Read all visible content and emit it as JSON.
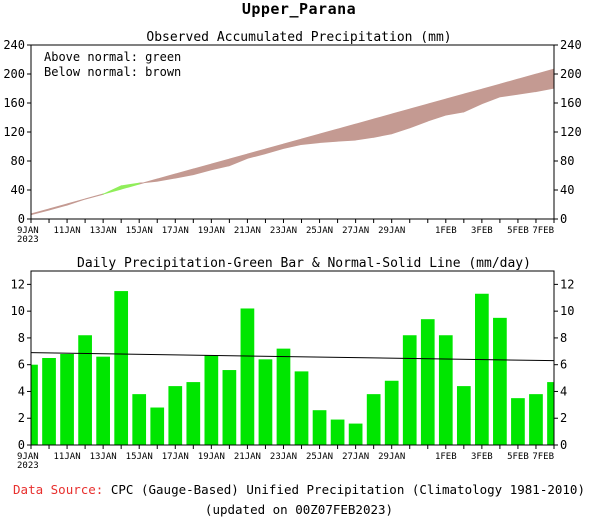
{
  "title": "Upper_Parana",
  "footer": {
    "source_label": "Data Source:",
    "source_text": "CPC (Gauge-Based) Unified Precipitation (Climatology 1981-2010)",
    "updated": "(updated on 00Z07FEB2023)"
  },
  "colors": {
    "above_normal": "#90ee5a",
    "below_normal": "#c49a92",
    "daily_bar": "#00e600",
    "normal_line": "#000000",
    "source_label": "#e8302e"
  },
  "chart_data": [
    {
      "type": "area",
      "title": "Observed Accumulated Precipitation (mm)",
      "legend": [
        "Above normal: green",
        "Below normal: brown"
      ],
      "legend_position": "top-left",
      "ylim": [
        0,
        240
      ],
      "yticks": [
        0,
        40,
        80,
        120,
        160,
        200,
        240
      ],
      "xtick_labels": [
        "9JAN\n2023",
        "11JAN",
        "13JAN",
        "15JAN",
        "17JAN",
        "19JAN",
        "21JAN",
        "23JAN",
        "25JAN",
        "27JAN",
        "29JAN",
        "1FEB",
        "3FEB",
        "5FEB",
        "7FEB"
      ],
      "xtick_days": [
        0,
        2,
        4,
        6,
        8,
        10,
        12,
        14,
        16,
        18,
        20,
        23,
        25,
        27,
        29
      ],
      "x_days": [
        0,
        1,
        2,
        3,
        4,
        5,
        6,
        7,
        8,
        9,
        10,
        11,
        12,
        13,
        14,
        15,
        16,
        17,
        18,
        19,
        20,
        21,
        22,
        23,
        24,
        25,
        26,
        27,
        28,
        29
      ],
      "observed": [
        6,
        12.5,
        19.3,
        27.5,
        34.1,
        45.6,
        49.4,
        52.2,
        56.6,
        61.3,
        68,
        73.6,
        83.8,
        90.2,
        97.4,
        102.9,
        105.5,
        107.4,
        109,
        112.8,
        117.6,
        125.8,
        135.2,
        143.4,
        147.8,
        159.1,
        168.6,
        172.1,
        175.9,
        180.6
      ],
      "normal": [
        6.9,
        13.8,
        20.7,
        27.6,
        34.4,
        41.3,
        48.2,
        55.1,
        62,
        68.9,
        75.7,
        82.6,
        89.5,
        96.4,
        103.3,
        110.2,
        117.1,
        123.9,
        130.8,
        137.7,
        144.6,
        151.5,
        158.4,
        165.3,
        172.2,
        179,
        185.9,
        192.8,
        199.7,
        206.6
      ]
    },
    {
      "type": "bar",
      "title": "Daily Precipitation-Green Bar & Normal-Solid Line (mm/day)",
      "ylim": [
        0,
        13
      ],
      "yticks": [
        0,
        2,
        4,
        6,
        8,
        10,
        12
      ],
      "xtick_labels": [
        "9JAN\n2023",
        "11JAN",
        "13JAN",
        "15JAN",
        "17JAN",
        "19JAN",
        "21JAN",
        "23JAN",
        "25JAN",
        "27JAN",
        "29JAN",
        "1FEB",
        "3FEB",
        "5FEB",
        "7FEB"
      ],
      "xtick_days": [
        0,
        2,
        4,
        6,
        8,
        10,
        12,
        14,
        16,
        18,
        20,
        23,
        25,
        27,
        29
      ],
      "x_days": [
        0,
        1,
        2,
        3,
        4,
        5,
        6,
        7,
        8,
        9,
        10,
        11,
        12,
        13,
        14,
        15,
        16,
        17,
        18,
        19,
        20,
        21,
        22,
        23,
        24,
        25,
        26,
        27,
        28,
        29
      ],
      "values": [
        6.0,
        6.5,
        6.8,
        8.2,
        6.6,
        11.5,
        3.8,
        2.8,
        4.4,
        4.7,
        6.7,
        5.6,
        10.2,
        6.4,
        7.2,
        5.5,
        2.6,
        1.9,
        1.6,
        3.8,
        4.8,
        8.2,
        9.4,
        8.2,
        4.4,
        11.3,
        9.5,
        3.5,
        3.8,
        4.7
      ],
      "normal_line": [
        6.9,
        6.3
      ]
    }
  ]
}
